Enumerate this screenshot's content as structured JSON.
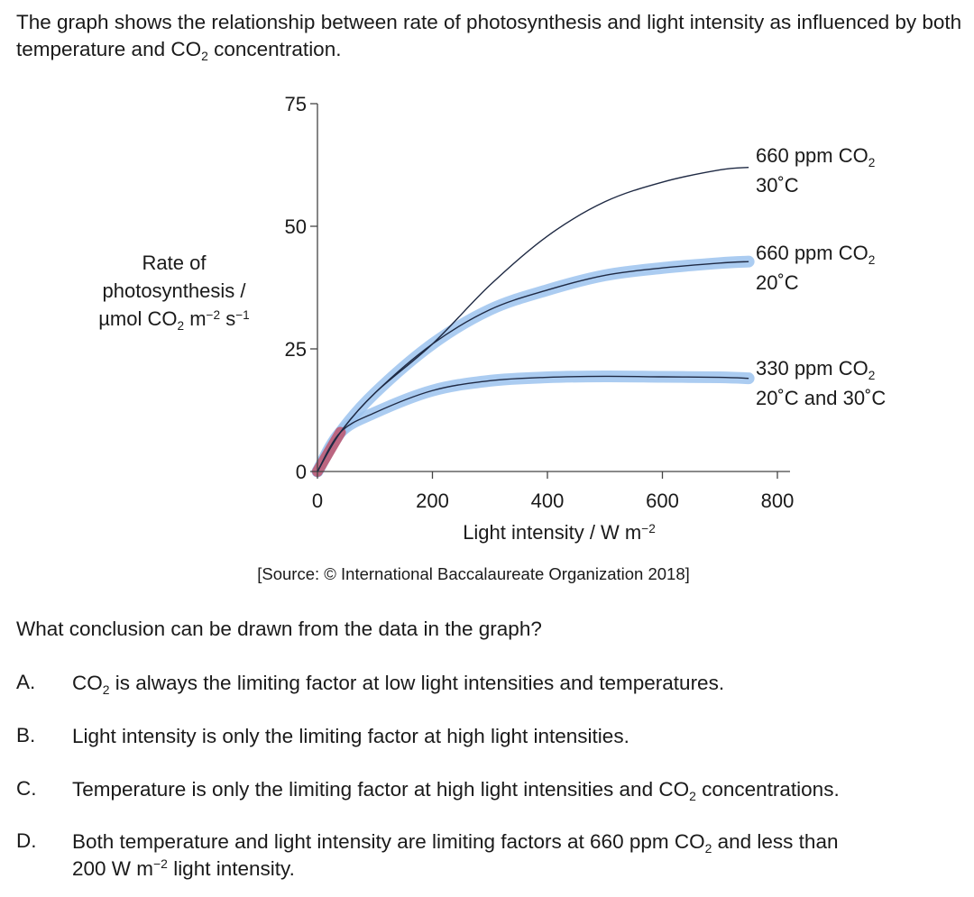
{
  "intro": {
    "part1": "The graph shows the relationship between rate of photosynthesis and light intensity as influenced by both temperature and CO",
    "sub": "2",
    "part2": " concentration."
  },
  "chart_data": {
    "type": "line",
    "xlabel": {
      "text": "Light intensity / W m",
      "sup": "−2"
    },
    "ylabel": {
      "line1": "Rate of",
      "line2": "photosynthesis /",
      "line3_a": "µmol CO",
      "line3_sub": "2",
      "line3_b": " m",
      "line3_sup1": "−2",
      "line3_c": " s",
      "line3_sup2": "−1"
    },
    "xlim": [
      0,
      800
    ],
    "ylim": [
      0,
      75
    ],
    "xticks": [
      0,
      200,
      400,
      600,
      800
    ],
    "yticks": [
      0,
      25,
      50,
      75
    ],
    "series": [
      {
        "label_a": "660 ppm CO",
        "label_sub": "2",
        "label_b": "30˚C",
        "highlighted": false,
        "x": [
          0,
          40,
          100,
          200,
          300,
          400,
          500,
          600,
          700,
          750
        ],
        "y": [
          0,
          8,
          16,
          26,
          38,
          48,
          55,
          59,
          61.5,
          62
        ]
      },
      {
        "label_a": "660 ppm CO",
        "label_sub": "2",
        "label_b": "20˚C",
        "highlighted": true,
        "x": [
          0,
          40,
          100,
          200,
          300,
          400,
          500,
          600,
          700,
          750
        ],
        "y": [
          0,
          8,
          16,
          26,
          33,
          37,
          40,
          41.5,
          42.5,
          42.8
        ]
      },
      {
        "label_a": "330 ppm CO",
        "label_sub": "2",
        "label_b": "20˚C and 30˚C",
        "highlighted": true,
        "x": [
          0,
          40,
          100,
          200,
          300,
          400,
          500,
          600,
          700,
          750
        ],
        "y": [
          0,
          8,
          12,
          16.5,
          18.5,
          19.2,
          19.4,
          19.3,
          19.2,
          19.0
        ]
      }
    ],
    "colors": {
      "line": "#1f2a44",
      "highlight": "#9cc3ee",
      "origin_highlight": "#c0566e",
      "axis": "#444444"
    }
  },
  "source": "[Source: © International Baccalaureate Organization 2018]",
  "question": "What conclusion can be drawn from the data in the graph?",
  "options": [
    {
      "letter": "A.",
      "a": "CO",
      "sub": "2",
      "b": " is always the limiting factor at low light intensities and temperatures."
    },
    {
      "letter": "B.",
      "a": "Light intensity is only the limiting factor at high light intensities."
    },
    {
      "letter": "C.",
      "a": "Temperature is only the limiting factor at high light intensities and CO",
      "sub": "2",
      "b": " concentrations."
    },
    {
      "letter": "D.",
      "a": "Both temperature and light intensity are limiting factors at 660 ppm CO",
      "sub": "2",
      "b": " and less than",
      "line2_a": "200 W m",
      "line2_sup": "−2",
      "line2_b": " light intensity."
    }
  ]
}
